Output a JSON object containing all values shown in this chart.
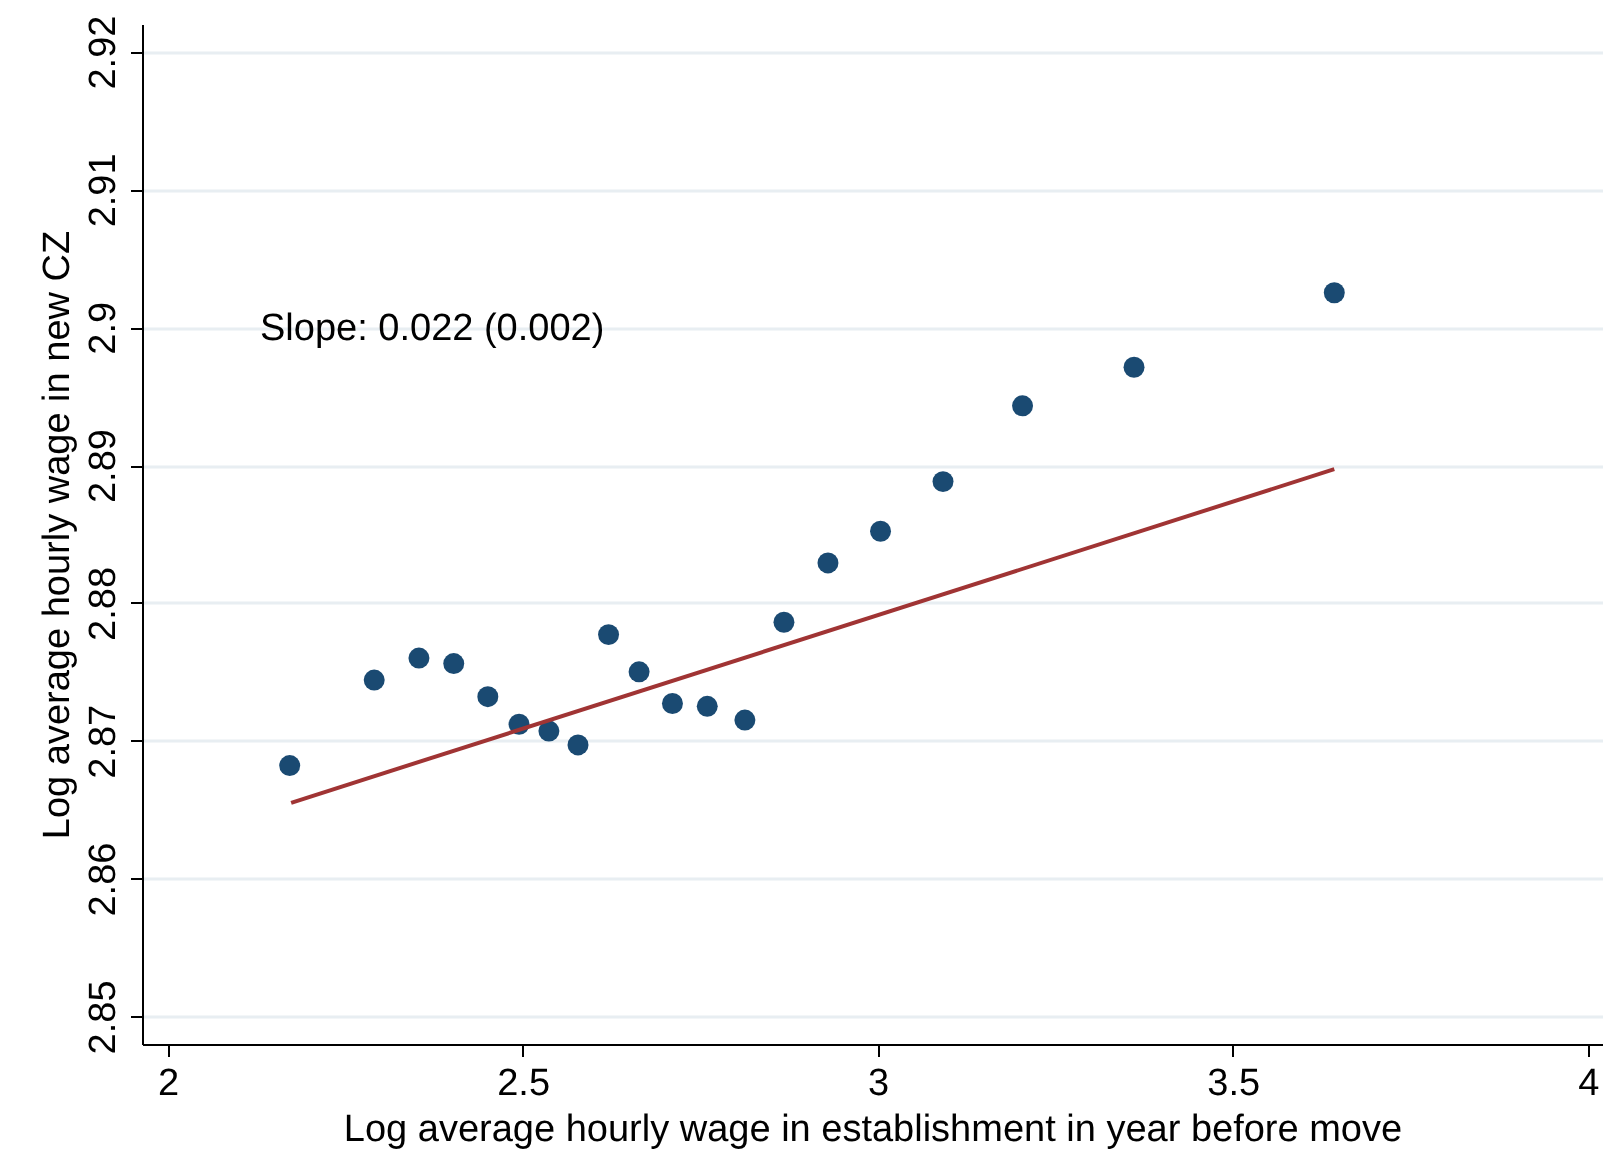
{
  "chart_data": {
    "type": "scatter",
    "xlabel": "Log average hourly wage in establishment in year before move",
    "ylabel": "Log average hourly wage in new CZ",
    "annotations": [
      "Slope: 0.022 (0.002)"
    ],
    "xlim": [
      1.964,
      4.02
    ],
    "ylim": [
      2.848,
      2.922
    ],
    "xticks": [
      2,
      2.5,
      3,
      3.5,
      4
    ],
    "yticks": [
      2.85,
      2.86,
      2.87,
      2.88,
      2.89,
      2.9,
      2.91,
      2.92
    ],
    "grid": "y",
    "series": [
      {
        "marker": "circle",
        "color": "#1a4a72",
        "x": [
          2.172,
          2.291,
          2.354,
          2.403,
          2.451,
          2.495,
          2.537,
          2.578,
          2.621,
          2.664,
          2.711,
          2.76,
          2.813,
          2.868,
          2.93,
          3.004,
          3.092,
          3.204,
          3.361,
          3.643
        ],
        "values": [
          2.8682,
          2.8744,
          2.876,
          2.8756,
          2.8732,
          2.8712,
          2.8707,
          2.8697,
          2.8777,
          2.875,
          2.8727,
          2.8725,
          2.8715,
          2.8786,
          2.8829,
          2.8852,
          2.8888,
          2.8943,
          2.8971,
          2.9025
        ]
      },
      {
        "type": "line",
        "color": "#a03434",
        "x": [
          2.174,
          3.643
        ],
        "values": [
          2.8655,
          2.8897
        ]
      }
    ]
  }
}
